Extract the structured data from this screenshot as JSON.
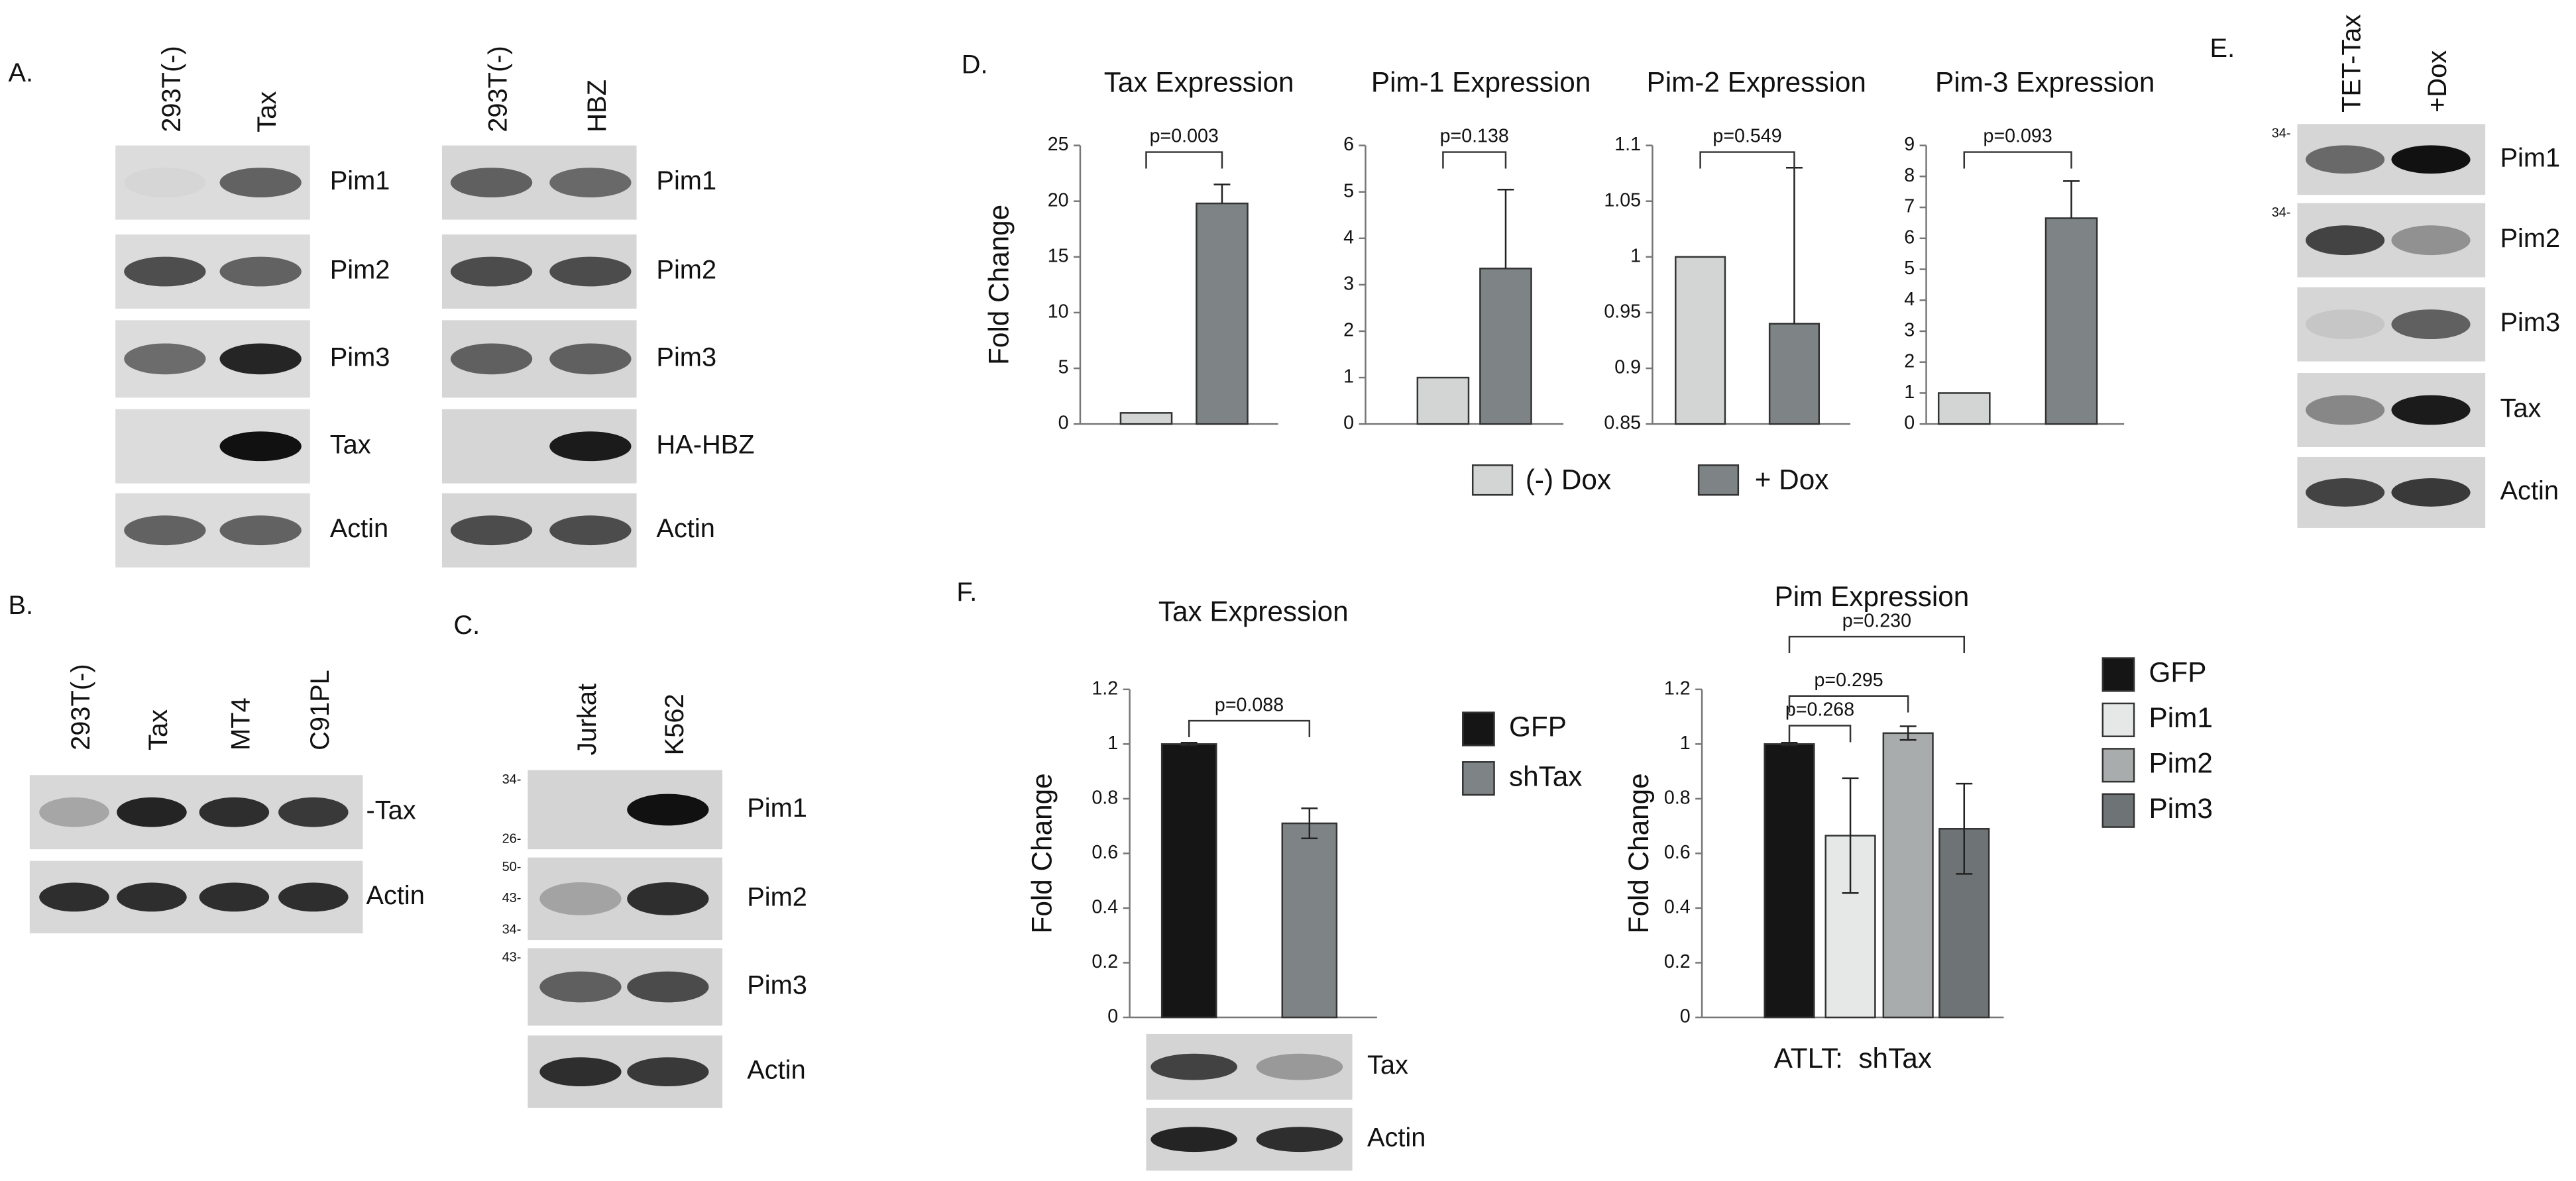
{
  "panels": {
    "A": "A.",
    "B": "B.",
    "C": "C.",
    "D": "D.",
    "E": "E.",
    "F": "F."
  },
  "blots": {
    "A_left": {
      "lanes": [
        "293T(-)",
        "Tax"
      ],
      "rows": [
        {
          "label": "Pim1"
        },
        {
          "label": "Pim2"
        },
        {
          "label": "Pim3"
        },
        {
          "label": "Tax"
        },
        {
          "label": "Actin"
        }
      ]
    },
    "A_right": {
      "lanes": [
        "293T(-)",
        "HBZ"
      ],
      "rows": [
        {
          "label": "Pim1"
        },
        {
          "label": "Pim2"
        },
        {
          "label": "Pim3"
        },
        {
          "label": "HA-HBZ"
        },
        {
          "label": "Actin"
        }
      ]
    },
    "B": {
      "lanes": [
        "293T(-)",
        "Tax",
        "MT4",
        "C91PL"
      ],
      "rows": [
        {
          "label": "-Tax"
        },
        {
          "label": "Actin"
        }
      ]
    },
    "C": {
      "lanes": [
        "Jurkat",
        "K562"
      ],
      "rows": [
        {
          "label": "Pim1",
          "markers": [
            "34-",
            "26-"
          ]
        },
        {
          "label": "Pim2",
          "markers": [
            "50-",
            "43-",
            "34-"
          ]
        },
        {
          "label": "Pim3",
          "markers": [
            "43-"
          ]
        },
        {
          "label": "Actin"
        }
      ]
    },
    "E": {
      "lanes": [
        "TET-Tax",
        "+Dox"
      ],
      "rows": [
        {
          "label": "Pim1",
          "markers": [
            "34-"
          ]
        },
        {
          "label": "Pim2",
          "markers": [
            "34-"
          ]
        },
        {
          "label": "Pim3"
        },
        {
          "label": "Tax"
        },
        {
          "label": "Actin"
        }
      ]
    },
    "F": {
      "rows": [
        {
          "label": "Tax"
        },
        {
          "label": "Actin"
        }
      ]
    }
  },
  "d_legend": [
    {
      "name": "(-) Dox",
      "color": "#d2d5d3"
    },
    {
      "name": "+ Dox",
      "color": "#7e8486"
    }
  ],
  "chart_data": [
    {
      "type": "bar",
      "title": "Tax Expression",
      "y_label": "Fold Change",
      "values": [
        1,
        19.8
      ],
      "errors": [
        null,
        1.7
      ],
      "ylim": [
        0,
        25
      ],
      "yticks": [
        0,
        5,
        10,
        15,
        20,
        25
      ],
      "p_value": "p=0.003"
    },
    {
      "type": "bar",
      "title": "Pim-1 Expression",
      "values": [
        1,
        3.35
      ],
      "errors": [
        null,
        1.7
      ],
      "ylim": [
        0,
        6
      ],
      "yticks": [
        0,
        1,
        2,
        3,
        4,
        5,
        6
      ],
      "p_value": "p=0.138"
    },
    {
      "type": "bar",
      "title": "Pim-2 Expression",
      "values": [
        1,
        0.94
      ],
      "errors": [
        null,
        0.14
      ],
      "ylim": [
        0.85,
        1.1
      ],
      "yticks": [
        0.85,
        0.9,
        0.95,
        1,
        1.05,
        1.1
      ],
      "p_value": "p=0.549"
    },
    {
      "type": "bar",
      "title": "Pim-3 Expression",
      "values": [
        1,
        6.65
      ],
      "errors": [
        null,
        1.2
      ],
      "ylim": [
        0,
        9
      ],
      "yticks": [
        0,
        1,
        2,
        3,
        4,
        5,
        6,
        7,
        8,
        9
      ],
      "p_value": "p=0.093"
    },
    {
      "type": "bar",
      "title": "Tax Expression",
      "y_label": "Fold Change",
      "series": [
        {
          "name": "GFP",
          "color": "#151515",
          "values": [
            1
          ],
          "errors": [
            0.005
          ]
        },
        {
          "name": "shTax",
          "color": "#7e8486",
          "values": [
            0.71
          ],
          "errors": [
            0.055
          ]
        }
      ],
      "ylim": [
        0,
        1.2
      ],
      "yticks": [
        0,
        0.2,
        0.4,
        0.6,
        0.8,
        1,
        1.2
      ],
      "annotations": [
        "p=0.088"
      ]
    },
    {
      "type": "bar",
      "title": "Pim Expression",
      "y_label": "Fold Change",
      "x_label": "ATLT:  shTax",
      "series": [
        {
          "name": "GFP",
          "color": "#151515",
          "values": [
            1
          ],
          "errors": [
            0.005
          ]
        },
        {
          "name": "Pim1",
          "color": "#e6e8e8",
          "values": [
            0.665
          ],
          "errors": [
            0.21
          ]
        },
        {
          "name": "Pim2",
          "color": "#a8acac",
          "values": [
            1.04
          ],
          "errors": [
            0.025
          ]
        },
        {
          "name": "Pim3",
          "color": "#6e7475",
          "values": [
            0.69
          ],
          "errors": [
            0.165
          ]
        }
      ],
      "ylim": [
        0,
        1.2
      ],
      "yticks": [
        0,
        0.2,
        0.4,
        0.6,
        0.8,
        1,
        1.2
      ],
      "annotations": [
        "p=0.268",
        "p=0.295",
        "p=0.230"
      ]
    }
  ]
}
